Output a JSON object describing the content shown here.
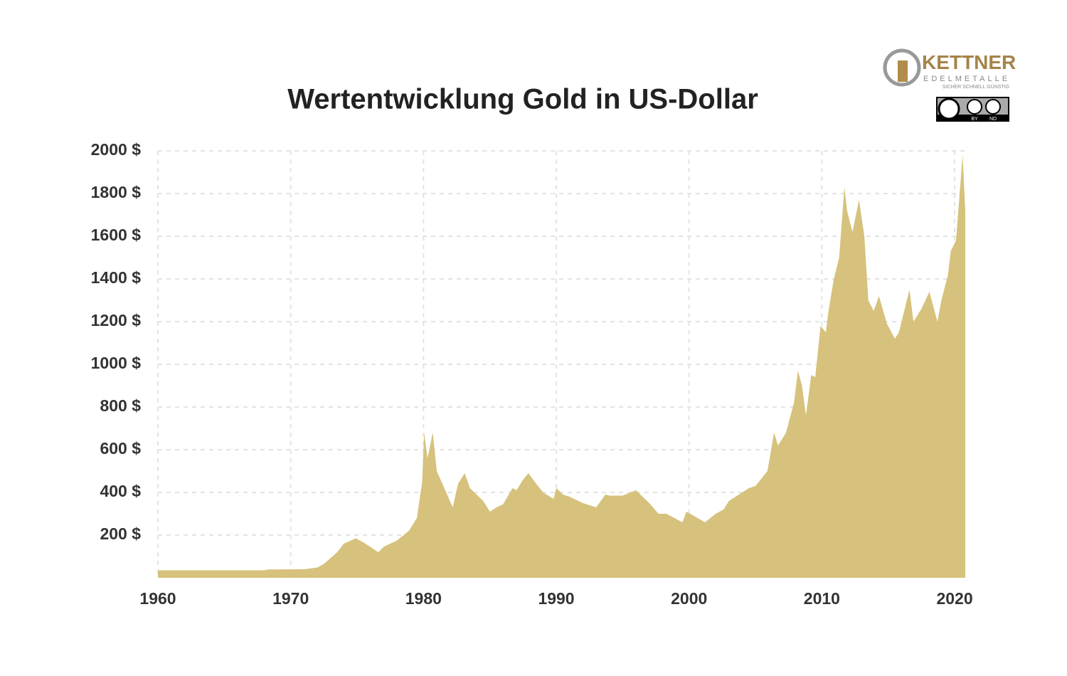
{
  "chart_data": {
    "type": "area",
    "title": "Wertentwicklung Gold in US-Dollar",
    "x": [
      1960,
      1968,
      1968.3,
      1971,
      1972,
      1972.5,
      1973.5,
      1974,
      1974.9,
      1975.5,
      1976.6,
      1977,
      1978,
      1978.9,
      1979.5,
      1979.9,
      1980.05,
      1980.3,
      1980.7,
      1981,
      1981.5,
      1982.2,
      1982.6,
      1983.1,
      1983.5,
      1984,
      1984.5,
      1985,
      1985.5,
      1986,
      1986.7,
      1987,
      1987.5,
      1987.9,
      1988.5,
      1989,
      1989.8,
      1990,
      1990.5,
      1991,
      1992,
      1993,
      1993.7,
      1994,
      1995,
      1996,
      1996.5,
      1997,
      1997.7,
      1998.3,
      1999.5,
      1999.8,
      2000.5,
      2001.2,
      2002,
      2002.6,
      2003,
      2004,
      2004.5,
      2005,
      2005.9,
      2006.4,
      2006.7,
      2007.3,
      2007.9,
      2008.2,
      2008.5,
      2008.8,
      2009.2,
      2009.5,
      2009.9,
      2010.3,
      2010.5,
      2010.9,
      2011.3,
      2011.7,
      2011.9,
      2012.3,
      2012.8,
      2013.2,
      2013.5,
      2013.9,
      2014.3,
      2014.9,
      2015.5,
      2015.8,
      2016.2,
      2016.6,
      2016.9,
      2017.5,
      2018.1,
      2018.7,
      2019,
      2019.5,
      2019.7,
      2020.1,
      2020.6,
      2020.8
    ],
    "values": [
      35,
      35,
      39,
      40,
      48,
      65,
      120,
      160,
      185,
      165,
      120,
      145,
      175,
      220,
      280,
      450,
      680,
      560,
      680,
      500,
      430,
      330,
      440,
      490,
      420,
      390,
      360,
      310,
      330,
      345,
      420,
      410,
      460,
      490,
      440,
      400,
      370,
      420,
      390,
      380,
      350,
      330,
      390,
      385,
      385,
      410,
      380,
      350,
      300,
      300,
      260,
      310,
      285,
      260,
      300,
      320,
      360,
      400,
      420,
      430,
      500,
      680,
      620,
      680,
      820,
      970,
      900,
      760,
      950,
      940,
      1180,
      1150,
      1250,
      1400,
      1500,
      1830,
      1720,
      1620,
      1770,
      1600,
      1300,
      1250,
      1320,
      1190,
      1120,
      1150,
      1250,
      1350,
      1200,
      1260,
      1340,
      1200,
      1300,
      1420,
      1530,
      1580,
      1980,
      1720
    ],
    "color": "#d6c27c",
    "xlim": [
      1960,
      2020.8
    ],
    "xticks": [
      1960,
      1970,
      1980,
      1990,
      2000,
      2010,
      2020
    ],
    "ylim": [
      0,
      2000
    ],
    "yticks": [
      {
        "value": 200,
        "label": "200 $"
      },
      {
        "value": 400,
        "label": "400 $"
      },
      {
        "value": 600,
        "label": "600 $"
      },
      {
        "value": 800,
        "label": "800 $"
      },
      {
        "value": 1000,
        "label": "1000 $"
      },
      {
        "value": 1200,
        "label": "1200 $"
      },
      {
        "value": 1400,
        "label": "1400 $"
      },
      {
        "value": 1600,
        "label": "1600 $"
      },
      {
        "value": 1800,
        "label": "1800 $"
      },
      {
        "value": 2000,
        "label": "2000 $"
      }
    ],
    "grid": true
  },
  "logo": {
    "name": "KETTNER",
    "subtitle": "EDELMETALLE",
    "tagline": "SICHER SCHNELL GÜNSTIG"
  },
  "license": {
    "by": "BY",
    "nd": "ND"
  }
}
